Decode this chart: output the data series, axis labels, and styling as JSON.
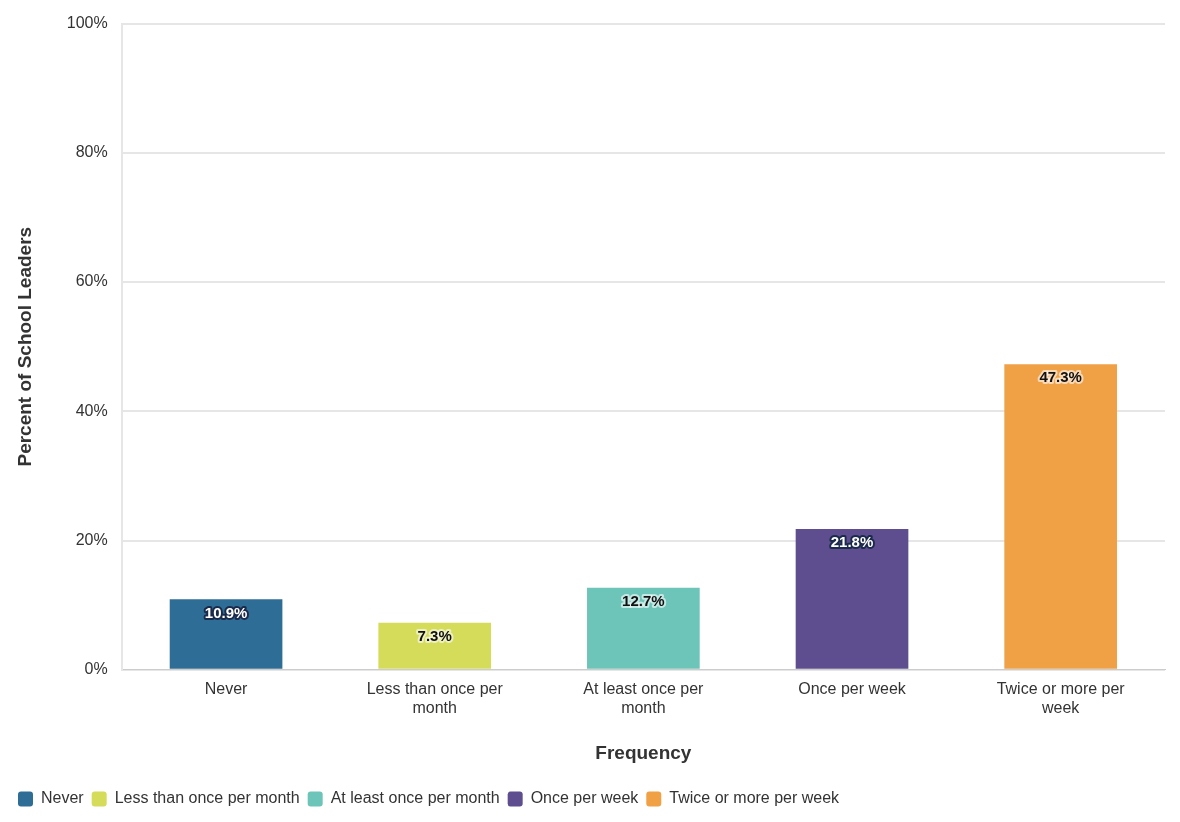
{
  "chart_data": {
    "type": "bar",
    "xlabel": "Frequency",
    "ylabel": "Percent of School Leaders",
    "categories": [
      "Never",
      "Less than once per month",
      "At least once per month",
      "Once per week",
      "Twice or more per week"
    ],
    "series": [
      {
        "name": "Never",
        "color": "#2e6e96",
        "values": [
          10.9,
          null,
          null,
          null,
          null
        ],
        "value_labels": [
          "10.9%",
          null,
          null,
          null,
          null
        ]
      },
      {
        "name": "Less than once per month",
        "color": "#d4dc5a",
        "values": [
          null,
          7.3,
          null,
          null,
          null
        ],
        "value_labels": [
          null,
          "7.3%",
          null,
          null,
          null
        ]
      },
      {
        "name": "At least once per month",
        "color": "#6cc5b8",
        "values": [
          null,
          null,
          12.7,
          null,
          null
        ],
        "value_labels": [
          null,
          null,
          "12.7%",
          null,
          null
        ]
      },
      {
        "name": "Once per week",
        "color": "#5e4d8f",
        "values": [
          null,
          null,
          null,
          21.8,
          null
        ],
        "value_labels": [
          null,
          null,
          null,
          "21.8%",
          null
        ]
      },
      {
        "name": "Twice or more per week",
        "color": "#f0a045",
        "values": [
          null,
          null,
          null,
          null,
          47.3
        ],
        "value_labels": [
          null,
          null,
          null,
          null,
          "47.3%"
        ]
      }
    ],
    "ylim": [
      0,
      100
    ],
    "yticks": [
      {
        "value": 0,
        "label": "0%"
      },
      {
        "value": 20,
        "label": "20%"
      },
      {
        "value": 40,
        "label": "40%"
      },
      {
        "value": 60,
        "label": "60%"
      },
      {
        "value": 80,
        "label": "80%"
      },
      {
        "value": 100,
        "label": "100%"
      }
    ],
    "grid": "y",
    "legend": "bottom left"
  }
}
